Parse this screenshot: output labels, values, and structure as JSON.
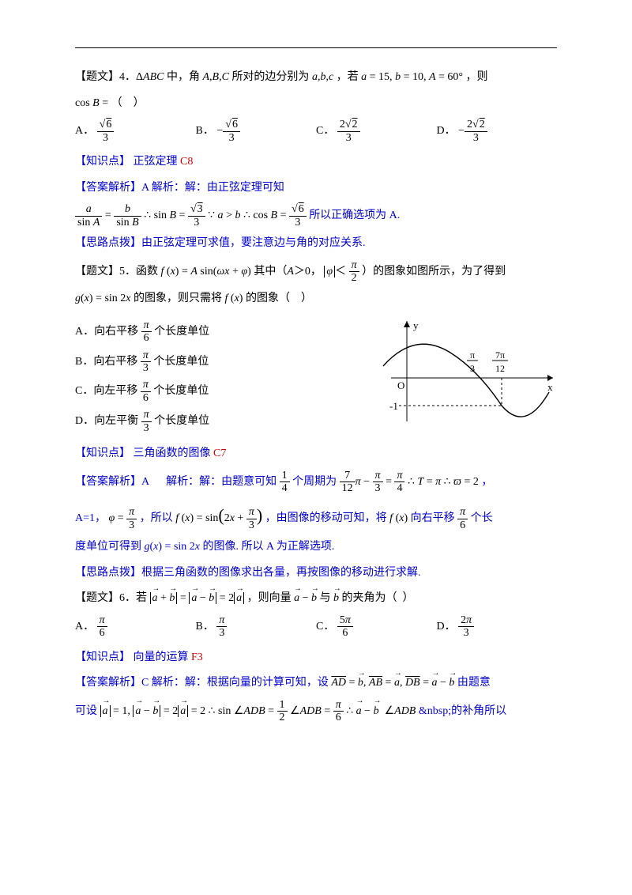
{
  "q4": {
    "prefix": "【题文】4．",
    "body1": "Δ<span class='math'>ABC</span> 中，角 <span class='math'>A</span>,<span class='math'>B</span>,<span class='math'>C</span> 所对的边分别为 <span class='math'>a</span>,<span class='math'>b</span>,<span class='math'>c</span> ，若 <span class='math'>a</span> = 15, <span class='math'>b</span> = 10, <span class='math'>A</span> = 60° ，则",
    "body2": "cos <span class='math'>B</span> = （&nbsp;&nbsp;&nbsp;&nbsp;）",
    "optA_label": "A．",
    "optB_label": "B．",
    "optC_label": "C．",
    "optD_label": "D．",
    "kp_label": "【知识点】",
    "kp_text": " 正弦定理 ",
    "kp_code": "C8",
    "ans_label": "【答案解析】A",
    "ans_text": "  解析：解：由正弦定理可知",
    "ans2": " 所以正确选项为 A.",
    "tip_label": "【思路点拨】",
    "tip_text": "由正弦定理可求值，要注意边与角的对应关系."
  },
  "q5": {
    "prefix": "【题文】5．",
    "body1": "函数 <span class='math'>f</span> (<span class='math'>x</span>) = <span class='math'>A</span> sin(<span class='math'>ωx</span> + <span class='math'>φ</span>) 其中（<span class='math'>A</span>＞0，",
    "body1b": "）的图象如图所示，为了得到",
    "body2": "<span class='math'>g</span>(<span class='math'>x</span>) = sin 2<span class='math'>x</span> 的图象，则只需将 <span class='math'>f</span> (<span class='math'>x</span>) 的图象（&nbsp;&nbsp;&nbsp;&nbsp;）",
    "optA": "A．向右平移",
    "optA2": "个长度单位",
    "optB": "B．向右平移",
    "optB2": "个长度单位",
    "optC": "C．向左平移",
    "optC2": "个长度单位",
    "optD": "D．向左平衡",
    "optD2": "个长度单位",
    "kp_label": "【知识点】",
    "kp_text": " 三角函数的图像 ",
    "kp_code": "C7",
    "ans_label": "【答案解析】A",
    "ans_text": "&nbsp;&nbsp;&nbsp;&nbsp;&nbsp;&nbsp;解析：解：由题意可知",
    "ans_tail": "个周期为",
    "ans2a": "A=1，",
    "ans2b": "，所以 ",
    "ans2c": "，由图像的移动可知，将 ",
    "ans2d": " 向右平移",
    "ans2e": "个长",
    "ans3": "度单位可得到 <span class='math'>g</span>(<span class='math'>x</span>) = sin 2<span class='math'>x</span> 的图像. 所以 A 为正解选项.",
    "tip_label": "【思路点拨】",
    "tip_text": "根据三角函数的图像求出各量，再按图像的移动进行求解."
  },
  "q6": {
    "prefix": "【题文】6．",
    "body1": "若 ",
    "body2": "，则向量 ",
    "body3": " 与 ",
    "body4": " 的夹角为（&nbsp;&nbsp;）",
    "optA_label": "A．",
    "optB_label": "B．",
    "optC_label": "C．",
    "optD_label": "D．",
    "kp_label": "【知识点】",
    "kp_text": " 向量的运算 ",
    "kp_code": "F3",
    "ans_label": "【答案解析】C",
    "ans_text": "  解析：解：根据向量的计算可知，设 ",
    "ans_tail": " 由题意",
    "ans2a": "可设 ",
    "ans2b": " &nbsp;的补角所以"
  },
  "graph": {
    "x_axis": "x",
    "y_axis": "y",
    "origin": "O",
    "y_tick": "-1",
    "x_tick1_num": "π",
    "x_tick1_den": "3",
    "x_tick2_num": "7π",
    "x_tick2_den": "12",
    "curve_color": "#000000",
    "axis_color": "#000000"
  }
}
